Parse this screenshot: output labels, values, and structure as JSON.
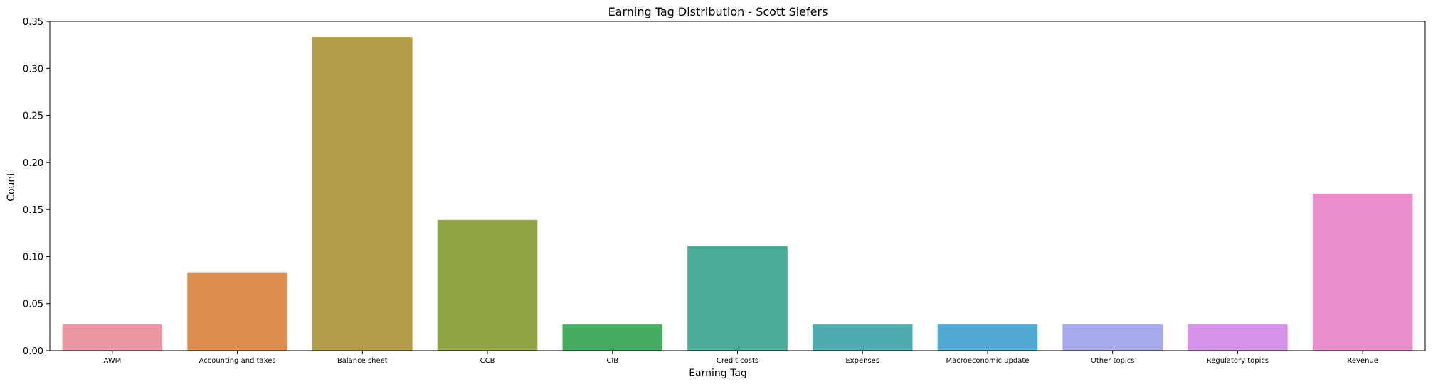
{
  "chart_data": {
    "type": "bar",
    "title": "Earning Tag Distribution - Scott Siefers",
    "xlabel": "Earning Tag",
    "ylabel": "Count",
    "ylim": [
      0,
      0.35
    ],
    "yticks": [
      "0.00",
      "0.05",
      "0.10",
      "0.15",
      "0.20",
      "0.25",
      "0.30",
      "0.35"
    ],
    "categories": [
      "AWM",
      "Accounting and taxes",
      "Balance sheet",
      "CCB",
      "CIB",
      "Credit costs",
      "Expenses",
      "Macroeconomic update",
      "Other topics",
      "Regulatory topics",
      "Revenue"
    ],
    "values": [
      0.0278,
      0.0833,
      0.3333,
      0.1389,
      0.0278,
      0.1111,
      0.0278,
      0.0278,
      0.0278,
      0.0278,
      0.1667
    ],
    "colors": [
      "#ea96a3",
      "#dd8e4e",
      "#b29c47",
      "#8ea445",
      "#45ad5f",
      "#4aac97",
      "#4dabb0",
      "#51a9d3",
      "#a6a9ea",
      "#d492e9",
      "#e88fcb"
    ],
    "grid": false,
    "legend": "none"
  }
}
